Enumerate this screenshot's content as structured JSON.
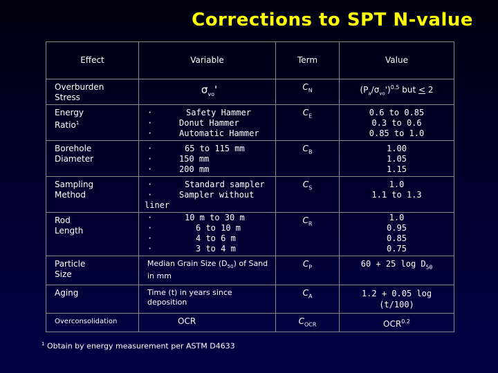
{
  "title": "Corrections to SPT N-value",
  "headers": {
    "effect": "Effect",
    "variable": "Variable",
    "term": "Term",
    "value": "Value"
  },
  "rows": {
    "overburden": {
      "effect_line1": "Overburden",
      "effect_line2": "Stress",
      "variable_symbol": "σ",
      "variable_sub": "vo",
      "variable_prime": "'",
      "term_letter": "C",
      "term_sub": "N",
      "value_pre": "(P",
      "value_sub_a": "a",
      "value_slash": "/σ",
      "value_sub_vo": "vo",
      "value_close": "')",
      "value_exp": "0.5",
      "value_but": " but ",
      "value_le": "<",
      "value_end": " 2"
    },
    "energy": {
      "effect_line1": "Energy",
      "effect_line2": "Ratio",
      "effect_sup": "1",
      "items": [
        "Safety Hammer",
        "Donut Hammer",
        "Automatic Hammer"
      ],
      "term_letter": "C",
      "term_sub": "E",
      "values": [
        "0.6 to 0.85",
        "0.3 to 0.6",
        "0.85 to 1.0"
      ]
    },
    "borehole": {
      "effect_line1": "Borehole",
      "effect_line2": "Diameter",
      "items": [
        "65 to 115 mm",
        "150 mm",
        "200 mm"
      ],
      "term_letter": "C",
      "term_sub": "B",
      "values": [
        "1.00",
        "1.05",
        "1.15"
      ]
    },
    "sampling": {
      "effect_line1": "Sampling",
      "effect_line2": "Method",
      "items": [
        "Standard sampler",
        "Sampler without"
      ],
      "item_wrap": "liner",
      "term_letter": "C",
      "term_sub": "S",
      "values": [
        "1.0",
        "1.1 to 1.3"
      ]
    },
    "rod": {
      "effect_line1": "Rod",
      "effect_line2": "Length",
      "items": [
        "10 m to 30 m",
        "6 to 10 m",
        "4 to 6 m",
        "3 to 4 m"
      ],
      "term_letter": "C",
      "term_sub": "R",
      "values": [
        "1.0",
        "0.95",
        "0.85",
        "0.75"
      ]
    },
    "particle": {
      "effect_line1": "Particle",
      "effect_line2": "Size",
      "variable_pre": "Median Grain Size (D",
      "variable_sub": "50",
      "variable_post": ") of Sand in mm",
      "term_letter": "C",
      "term_sub": "P",
      "value_pre": "60 + 25 log D",
      "value_sub": "50"
    },
    "aging": {
      "effect": "Aging",
      "variable": "Time (t) in years since deposition",
      "term_letter": "C",
      "term_sub": "A",
      "value_line1": "1.2 + 0.05 log",
      "value_line2": "(t/100)"
    },
    "overconsolidation": {
      "effect": "Overconsolidation",
      "variable": "OCR",
      "term_letter": "C",
      "term_sub": "OCR",
      "value_base": "OCR",
      "value_exp": "0.2"
    }
  },
  "bullet": "·",
  "footnote": {
    "sup": "1",
    "text": " Obtain by energy measurement per ASTM D4633"
  }
}
